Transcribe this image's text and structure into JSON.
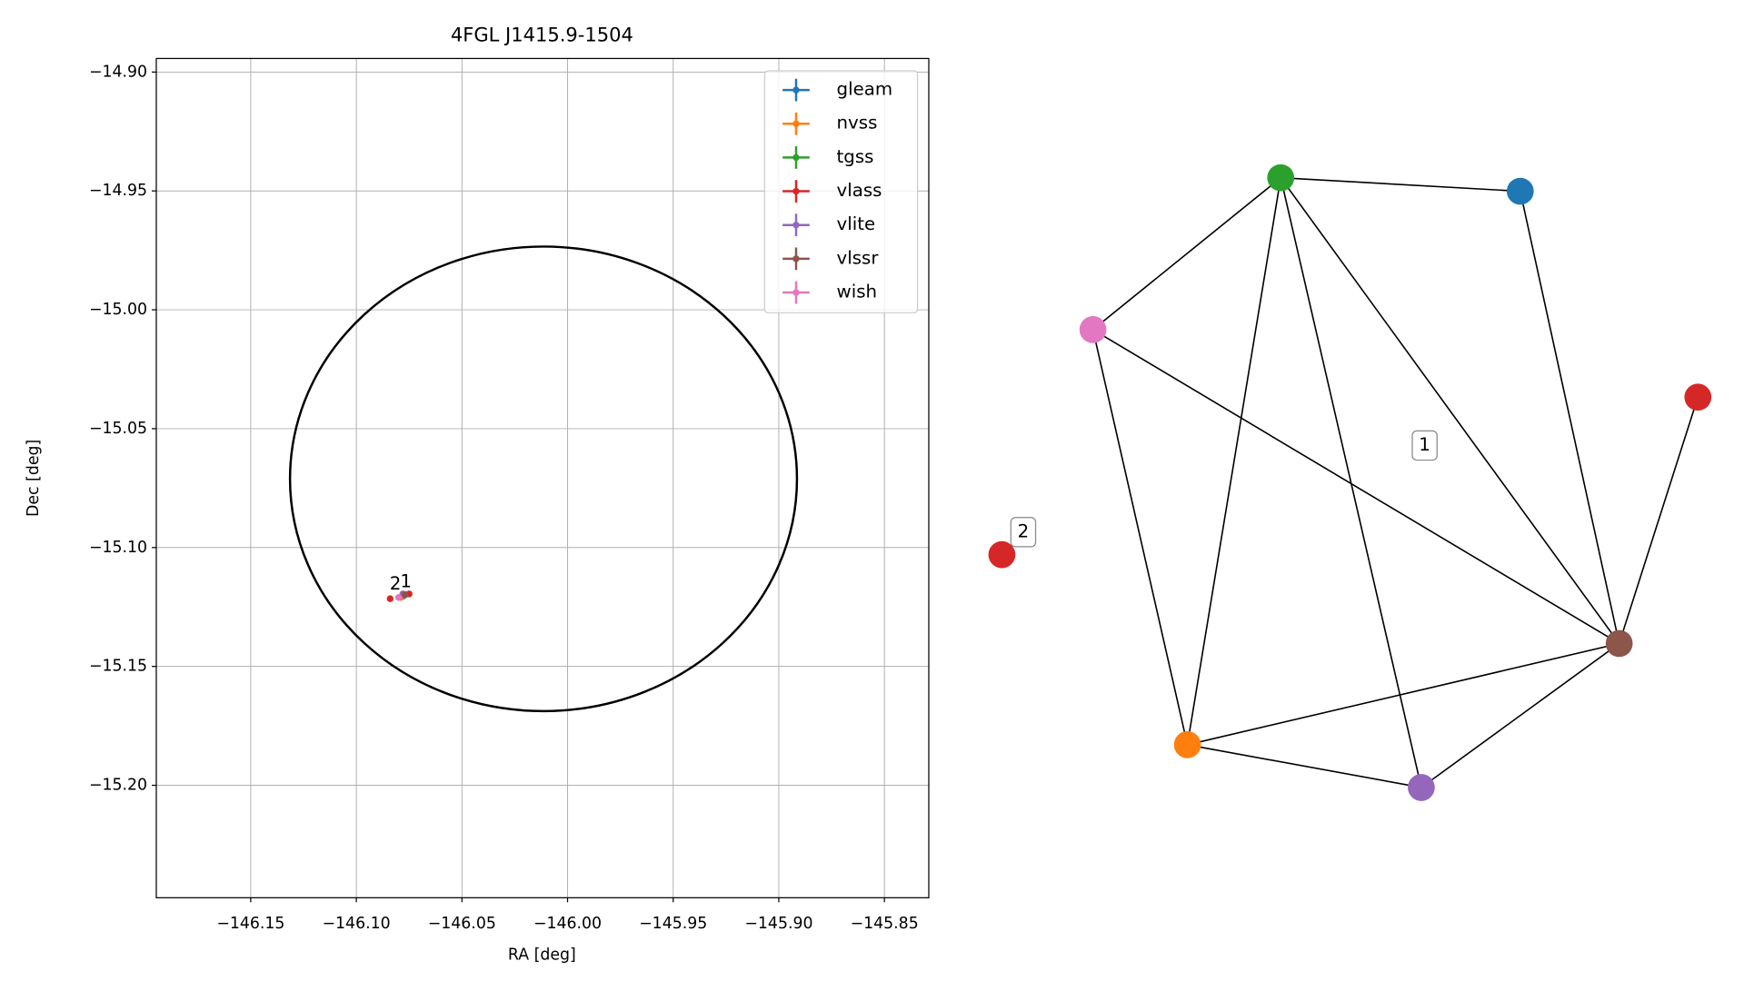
{
  "chart_data": [
    {
      "type": "scatter",
      "title": "4FGL J1415.9-1504",
      "x_label": "RA [deg]",
      "y_label": "Dec [deg]",
      "xlim": [
        -146.1947,
        -145.829
      ],
      "ylim": [
        -15.2473,
        -14.8943
      ],
      "xticks": [
        {
          "value": -146.15,
          "label": "−146.15"
        },
        {
          "value": -146.1,
          "label": "−146.10"
        },
        {
          "value": -146.05,
          "label": "−146.05"
        },
        {
          "value": -146.0,
          "label": "−146.00"
        },
        {
          "value": -145.95,
          "label": "−145.95"
        },
        {
          "value": -145.9,
          "label": "−145.90"
        },
        {
          "value": -145.85,
          "label": "−145.85"
        }
      ],
      "yticks": [
        {
          "value": -14.9,
          "label": "−14.90"
        },
        {
          "value": -14.95,
          "label": "−14.95"
        },
        {
          "value": -15.0,
          "label": "−15.00"
        },
        {
          "value": -15.05,
          "label": "−15.05"
        },
        {
          "value": -15.1,
          "label": "−15.10"
        },
        {
          "value": -15.15,
          "label": "−15.15"
        },
        {
          "value": -15.2,
          "label": "−15.20"
        }
      ],
      "grid": true,
      "legend": "upper right",
      "ellipse": {
        "center": [
          -146.0114,
          -15.0711
        ],
        "width": 0.24,
        "height": 0.1954,
        "color": "#000000"
      },
      "series": [
        {
          "name": "gleam",
          "color": "#1f77b4",
          "x": [
            -146.078
          ],
          "values": [
            -15.1205
          ]
        },
        {
          "name": "nvss",
          "color": "#ff7f0e",
          "x": [
            -146.079
          ],
          "values": [
            -15.121
          ]
        },
        {
          "name": "tgss",
          "color": "#2ca02c",
          "x": [
            -146.077
          ],
          "values": [
            -15.12
          ]
        },
        {
          "name": "vlass",
          "color": "#d62728",
          "x": [
            -146.084,
            -146.075
          ],
          "values": [
            -15.1215,
            -15.1195
          ]
        },
        {
          "name": "vlite",
          "color": "#9467bd",
          "x": [
            -146.078
          ],
          "values": [
            -15.1195
          ]
        },
        {
          "name": "vlssr",
          "color": "#8c564b",
          "x": [
            -146.077
          ],
          "values": [
            -15.1198
          ]
        },
        {
          "name": "wish",
          "color": "#e377c2",
          "x": [
            -146.08
          ],
          "values": [
            -15.121
          ]
        }
      ],
      "annotations": [
        {
          "text": "2",
          "x": -146.0815,
          "y": -15.1155
        },
        {
          "text": "1",
          "x": -146.0765,
          "y": -15.1145
        }
      ]
    },
    {
      "type": "network",
      "nodes": [
        {
          "color": "#2ca02c"
        },
        {
          "color": "#1f77b4"
        },
        {
          "color": "#e377c2"
        },
        {
          "color": "#d62728"
        },
        {
          "color": "#d62728"
        },
        {
          "color": "#8c564b"
        },
        {
          "color": "#ff7f0e"
        },
        {
          "color": "#9467bd"
        }
      ],
      "edges": [
        [
          0,
          1
        ],
        [
          0,
          2
        ],
        [
          0,
          6
        ],
        [
          0,
          7
        ],
        [
          0,
          5
        ],
        [
          1,
          5
        ],
        [
          2,
          6
        ],
        [
          2,
          5
        ],
        [
          3,
          5
        ],
        [
          6,
          5
        ],
        [
          6,
          7
        ],
        [
          7,
          5
        ]
      ],
      "group_labels": [
        "1",
        "2"
      ]
    }
  ]
}
